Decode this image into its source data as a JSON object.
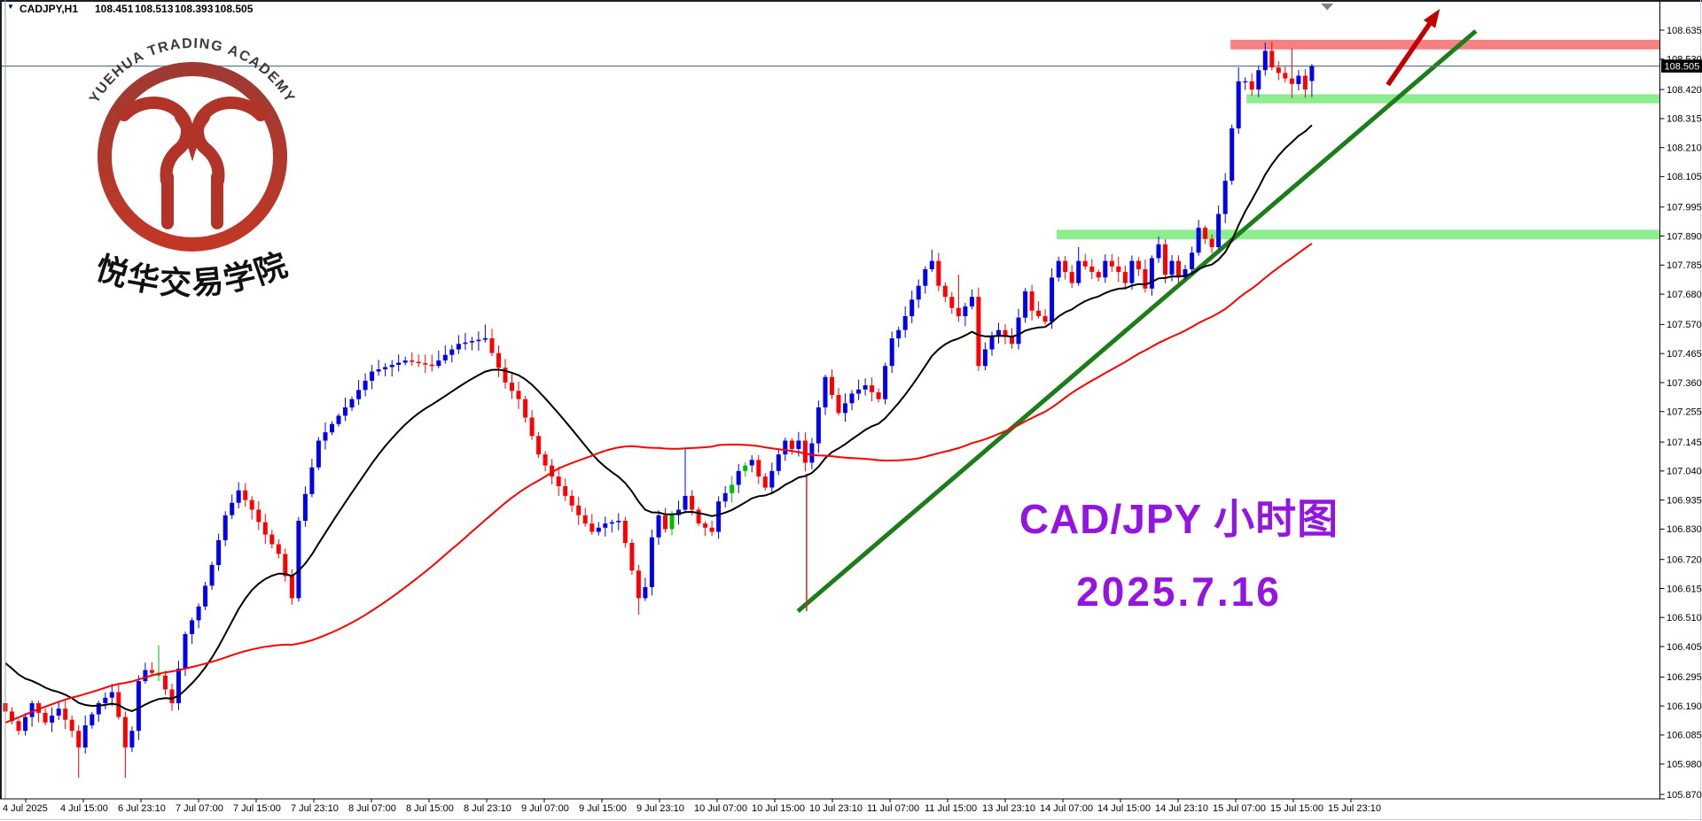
{
  "header": {
    "dropdown_icon": "▼",
    "symbol": "CADJPY,H1",
    "open": "108.451",
    "high": "108.513",
    "low": "108.393",
    "close": "108.505"
  },
  "logo": {
    "arc_text": "YUEHUA TRADING ACADEMY",
    "cn_text": "悦华交易学院"
  },
  "annotations": {
    "title": "CAD/JPY 小时图",
    "date": "2025.7.16"
  },
  "chart_data": {
    "type": "candlestick",
    "symbol": "CADJPY",
    "timeframe": "H1",
    "current_bar_ohlc": {
      "open": 108.451,
      "high": 108.513,
      "low": 108.393,
      "close": 108.505
    },
    "y_axis": {
      "labels": [
        "108.635",
        "108.530",
        "108.420",
        "108.315",
        "108.210",
        "108.105",
        "107.995",
        "107.890",
        "107.785",
        "107.680",
        "107.570",
        "107.465",
        "107.360",
        "107.255",
        "107.145",
        "107.040",
        "106.935",
        "106.830",
        "106.720",
        "106.615",
        "106.510",
        "106.405",
        "106.295",
        "106.190",
        "106.085",
        "105.980",
        "105.870"
      ],
      "current_price": "108.505",
      "range": [
        105.87,
        108.635
      ]
    },
    "x_axis": {
      "labels": [
        "4 Jul 2025",
        "4 Jul 15:00",
        "6 Jul 23:10",
        "7 Jul 07:00",
        "7 Jul 15:00",
        "7 Jul 23:10",
        "8 Jul 07:00",
        "8 Jul 15:00",
        "8 Jul 23:10",
        "9 Jul 07:00",
        "9 Jul 15:00",
        "9 Jul 23:10",
        "10 Jul 07:00",
        "10 Jul 15:00",
        "10 Jul 23:10",
        "11 Jul 07:00",
        "11 Jul 15:00",
        "13 Jul 23:10",
        "14 Jul 07:00",
        "14 Jul 15:00",
        "14 Jul 23:10",
        "15 Jul 07:00",
        "15 Jul 15:00",
        "15 Jul 23:10"
      ]
    },
    "colors": {
      "up": "#0000EE",
      "down": "#FF0000",
      "alt": "#00BB00",
      "ma_fast": "#000000",
      "ma_slow": "#FF0000",
      "band_red": "#F58282",
      "band_green": "#8DEC8D",
      "trend": "#1B7E1B",
      "arrow": "#C00000",
      "price_line": "#64798C",
      "purple": "#9415E2"
    },
    "series": {
      "bar_count": 197,
      "first_open": 106.2,
      "close_swings": [
        [
          0,
          106.17
        ],
        [
          2,
          106.1
        ],
        [
          4,
          106.2
        ],
        [
          6,
          106.13
        ],
        [
          8,
          106.18
        ],
        [
          10,
          106.1
        ],
        [
          11,
          106.04
        ],
        [
          12,
          106.12
        ],
        [
          14,
          106.2
        ],
        [
          16,
          106.24
        ],
        [
          17,
          106.15
        ],
        [
          18,
          106.04
        ],
        [
          19,
          106.1
        ],
        [
          20,
          106.28
        ],
        [
          21,
          106.32
        ],
        [
          23,
          106.3
        ],
        [
          25,
          106.2
        ],
        [
          27,
          106.45
        ],
        [
          29,
          106.55
        ],
        [
          31,
          106.7
        ],
        [
          33,
          106.88
        ],
        [
          35,
          106.97
        ],
        [
          37,
          106.9
        ],
        [
          39,
          106.81
        ],
        [
          41,
          106.74
        ],
        [
          43,
          106.58
        ],
        [
          44,
          106.86
        ],
        [
          47,
          107.15
        ],
        [
          52,
          107.3
        ],
        [
          55,
          107.4
        ],
        [
          60,
          107.44
        ],
        [
          64,
          107.42
        ],
        [
          68,
          107.5
        ],
        [
          72,
          107.52
        ],
        [
          75,
          107.36
        ],
        [
          77,
          107.3
        ],
        [
          80,
          107.1
        ],
        [
          82,
          107.02
        ],
        [
          84,
          106.95
        ],
        [
          86,
          106.88
        ],
        [
          88,
          106.82
        ],
        [
          90,
          106.85
        ],
        [
          92,
          106.86
        ],
        [
          93,
          106.78
        ],
        [
          95,
          106.58
        ],
        [
          96,
          106.62
        ],
        [
          97,
          106.8
        ],
        [
          98,
          106.88
        ],
        [
          99,
          106.83
        ],
        [
          100,
          106.88
        ],
        [
          101,
          106.9
        ],
        [
          102,
          106.95
        ],
        [
          104,
          106.85
        ],
        [
          106,
          106.82
        ],
        [
          107,
          106.93
        ],
        [
          109,
          106.99
        ],
        [
          110,
          107.04
        ],
        [
          112,
          107.08
        ],
        [
          113,
          107.02
        ],
        [
          114,
          106.98
        ],
        [
          116,
          107.1
        ],
        [
          117,
          107.15
        ],
        [
          118,
          107.12
        ],
        [
          119,
          107.15
        ],
        [
          120,
          107.07
        ],
        [
          121,
          107.14
        ],
        [
          122,
          107.27
        ],
        [
          123,
          107.38
        ],
        [
          125,
          107.25
        ],
        [
          127,
          107.32
        ],
        [
          129,
          107.35
        ],
        [
          131,
          107.3
        ],
        [
          132,
          107.42
        ],
        [
          133,
          107.52
        ],
        [
          134,
          107.55
        ],
        [
          135,
          107.6
        ],
        [
          136,
          107.66
        ],
        [
          137,
          107.71
        ],
        [
          138,
          107.77
        ],
        [
          139,
          107.8
        ],
        [
          140,
          107.71
        ],
        [
          142,
          107.63
        ],
        [
          143,
          107.6
        ],
        [
          145,
          107.67
        ],
        [
          146,
          107.42
        ],
        [
          147,
          107.48
        ],
        [
          148,
          107.53
        ],
        [
          149,
          107.55
        ],
        [
          151,
          107.5
        ],
        [
          153,
          107.69
        ],
        [
          154,
          107.62
        ],
        [
          156,
          107.58
        ],
        [
          157,
          107.74
        ],
        [
          158,
          107.8
        ],
        [
          160,
          107.72
        ],
        [
          161,
          107.8
        ],
        [
          164,
          107.74
        ],
        [
          165,
          107.8
        ],
        [
          167,
          107.76
        ],
        [
          168,
          107.72
        ],
        [
          169,
          107.8
        ],
        [
          170,
          107.77
        ],
        [
          171,
          107.7
        ],
        [
          172,
          107.81
        ],
        [
          173,
          107.86
        ],
        [
          174,
          107.75
        ],
        [
          175,
          107.8
        ],
        [
          176,
          107.74
        ],
        [
          177,
          107.77
        ],
        [
          178,
          107.83
        ],
        [
          179,
          107.92
        ],
        [
          180,
          107.88
        ],
        [
          181,
          107.85
        ],
        [
          182,
          107.97
        ],
        [
          183,
          108.09
        ],
        [
          184,
          108.28
        ],
        [
          185,
          108.45
        ],
        [
          186,
          108.45
        ],
        [
          187,
          108.42
        ],
        [
          188,
          108.49
        ],
        [
          189,
          108.56
        ],
        [
          190,
          108.5
        ],
        [
          192,
          108.46
        ],
        [
          193,
          108.44
        ],
        [
          194,
          108.47
        ],
        [
          195,
          108.42
        ],
        [
          196,
          108.505
        ]
      ],
      "prehistory": [
        [
          0,
          104.5
        ],
        [
          30,
          105.0
        ],
        [
          55,
          105.45
        ],
        [
          78,
          105.85
        ],
        [
          92,
          106.5
        ],
        [
          102,
          106.62
        ],
        [
          110,
          106.45
        ],
        [
          119,
          106.2
        ]
      ],
      "wicks": {
        "11": [
          0.02,
          0.11
        ],
        "18": [
          0.02,
          0.11
        ],
        "23": [
          0.1,
          0.02
        ],
        "35": [
          0.03,
          0.02
        ],
        "72": [
          0.05,
          0.01
        ],
        "95": [
          0.02,
          0.06
        ],
        "102": [
          0.17,
          0.01
        ],
        "139": [
          0.04,
          0.01
        ],
        "143": [
          0.12,
          0.02
        ],
        "161": [
          0.05,
          0.01
        ],
        "185": [
          0.05,
          0.02
        ],
        "189": [
          0.03,
          0.02
        ],
        "193": [
          0.11,
          0.05
        ]
      },
      "green_bars": [
        23,
        100,
        109,
        111
      ],
      "last_bar": [
        108.451,
        108.513,
        108.393,
        108.505
      ]
    },
    "moving_averages": [
      {
        "name": "fast-ma",
        "type": "ema",
        "period": 20,
        "color": "#000000"
      },
      {
        "name": "slow-ma",
        "type": "sma",
        "period": 64,
        "color": "#FF0000"
      }
    ],
    "overlays": {
      "resistance_zone": {
        "price_from": 108.565,
        "price_to": 108.6,
        "start_bar": 183.8
      },
      "support_zones": [
        {
          "price_from": 108.37,
          "price_to": 108.403,
          "start_bar": 186.2
        },
        {
          "price_from": 107.878,
          "price_to": 107.913,
          "start_bar": 157.7
        }
      ],
      "trendline": {
        "from": [
          118.9,
          106.533
        ],
        "to": [
          220.6,
          108.632
        ]
      },
      "vertical_line": {
        "bar": 120.2,
        "price_top": 107.03,
        "price_bottom": 106.533
      },
      "arrow": {
        "from": [
          207.4,
          108.437
        ],
        "to": [
          215.2,
          108.712
        ]
      },
      "shift_marker_bar": 198.3,
      "price_line_value": 108.505
    }
  }
}
